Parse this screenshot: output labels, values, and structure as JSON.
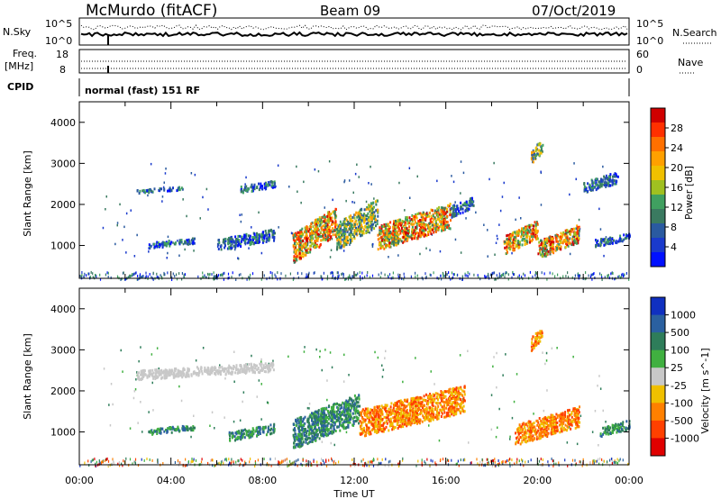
{
  "header": {
    "station": "McMurdo (fitACF)",
    "beam": "Beam 09",
    "date": "07/Oct/2019"
  },
  "top_panels": {
    "nsky_label": "N.Sky",
    "nsky_ticks": [
      "10^5",
      "10^0"
    ],
    "nsearch_label": "N.Search",
    "nsearch_ticks": [
      "10^5",
      "10^0"
    ],
    "freq_label_1": "Freq.",
    "freq_label_2": "[MHz]",
    "freq_ticks": [
      "18",
      "8"
    ],
    "nave_label": "Nave",
    "nave_ticks": [
      "60",
      "0"
    ],
    "cpid_label": "CPID",
    "cpid_text": "normal (fast) 151 RF"
  },
  "chart_data": [
    {
      "type": "heatmap",
      "name": "power",
      "xlabel": "Time UT",
      "ylabel": "Slant Range [km]",
      "xlim_hours": [
        0,
        24
      ],
      "ylim_km": [
        200,
        4500
      ],
      "y_ticks": [
        "1000",
        "2000",
        "3000",
        "4000"
      ],
      "x_ticks": [
        "00:00",
        "04:00",
        "08:00",
        "12:00",
        "16:00",
        "20:00",
        "00:00"
      ],
      "colorbar": {
        "label": "Power [dB]",
        "ticks": [
          "28",
          "24",
          "20",
          "16",
          "12",
          "8",
          "4"
        ],
        "colors": [
          "#d00000",
          "#ff3000",
          "#ff7000",
          "#ffa000",
          "#f0c000",
          "#a0c020",
          "#40a060",
          "#3a7a60",
          "#2a5aa0",
          "#1a3acc",
          "#0010ff"
        ]
      },
      "regions": [
        {
          "t": [
            9.3,
            11.2
          ],
          "r": [
            600,
            1900
          ],
          "level": "high"
        },
        {
          "t": [
            11.2,
            13.0
          ],
          "r": [
            900,
            2100
          ],
          "level": "mid"
        },
        {
          "t": [
            13.0,
            16.2
          ],
          "r": [
            900,
            2000
          ],
          "level": "high"
        },
        {
          "t": [
            16.2,
            17.2
          ],
          "r": [
            1700,
            2200
          ],
          "level": "low"
        },
        {
          "t": [
            18.5,
            20.0
          ],
          "r": [
            800,
            1600
          ],
          "level": "high"
        },
        {
          "t": [
            20.0,
            21.8
          ],
          "r": [
            700,
            1500
          ],
          "level": "high"
        },
        {
          "t": [
            3.0,
            5.0
          ],
          "r": [
            950,
            1200
          ],
          "level": "low"
        },
        {
          "t": [
            6.0,
            8.5
          ],
          "r": [
            900,
            1400
          ],
          "level": "low"
        },
        {
          "t": [
            7.0,
            8.5
          ],
          "r": [
            2300,
            2600
          ],
          "level": "low"
        },
        {
          "t": [
            2.5,
            4.5
          ],
          "r": [
            2300,
            2450
          ],
          "level": "low"
        },
        {
          "t": [
            22.5,
            24.0
          ],
          "r": [
            1000,
            1300
          ],
          "level": "low"
        },
        {
          "t": [
            22.0,
            23.5
          ],
          "r": [
            2300,
            2800
          ],
          "level": "low"
        },
        {
          "t": [
            19.7,
            20.2
          ],
          "r": [
            3000,
            3600
          ],
          "level": "mid"
        }
      ]
    },
    {
      "type": "heatmap",
      "name": "velocity",
      "xlabel": "Time UT",
      "ylabel": "Slant Range [km]",
      "xlim_hours": [
        0,
        24
      ],
      "ylim_km": [
        200,
        4500
      ],
      "y_ticks": [
        "1000",
        "2000",
        "3000",
        "4000"
      ],
      "x_ticks": [
        "00:00",
        "04:00",
        "08:00",
        "12:00",
        "16:00",
        "20:00",
        "00:00"
      ],
      "colorbar": {
        "label": "Velocity [m s^-1]",
        "ticks": [
          "1000",
          "500",
          "100",
          "25",
          "-25",
          "-100",
          "-500",
          "-1000"
        ],
        "colors": [
          "#1030c0",
          "#2a60a0",
          "#2e7d5a",
          "#40b040",
          "#c8c8c8",
          "#f0c000",
          "#ff8000",
          "#ff4000",
          "#e00000"
        ]
      },
      "regions": [
        {
          "t": [
            9.3,
            12.2
          ],
          "r": [
            600,
            1900
          ],
          "level": "pos"
        },
        {
          "t": [
            12.2,
            16.8
          ],
          "r": [
            900,
            2100
          ],
          "level": "neg"
        },
        {
          "t": [
            19.0,
            21.8
          ],
          "r": [
            700,
            1600
          ],
          "level": "neg"
        },
        {
          "t": [
            3.0,
            5.0
          ],
          "r": [
            950,
            1200
          ],
          "level": "pos"
        },
        {
          "t": [
            6.5,
            8.5
          ],
          "r": [
            800,
            1200
          ],
          "level": "pos"
        },
        {
          "t": [
            22.7,
            24.0
          ],
          "r": [
            900,
            1300
          ],
          "level": "pos"
        },
        {
          "t": [
            2.5,
            8.5
          ],
          "r": [
            2300,
            2700
          ],
          "level": "zero"
        },
        {
          "t": [
            19.7,
            20.2
          ],
          "r": [
            3000,
            3600
          ],
          "level": "neg"
        }
      ]
    }
  ]
}
